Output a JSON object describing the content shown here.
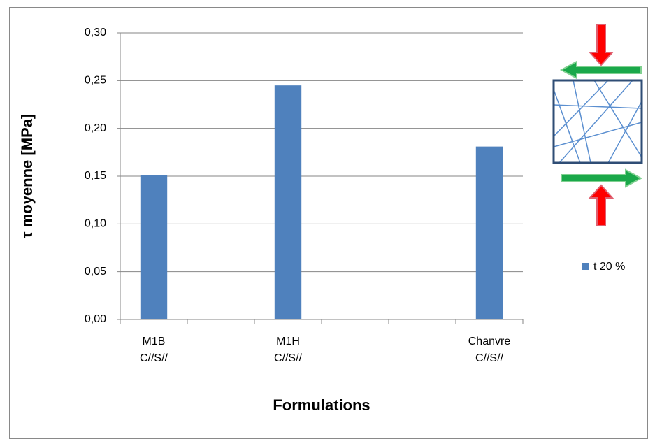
{
  "chart_data": {
    "type": "bar",
    "x_label": "Formulations",
    "y_label": "τ moyenne [MPa]",
    "categories": [
      "M1B\nC//S//",
      null,
      "M1H\nC//S//",
      null,
      null,
      "Chanvre\nC//S//"
    ],
    "series": [
      {
        "name": "t 20 %",
        "color": "#4f81bd",
        "values": [
          0.151,
          null,
          0.245,
          null,
          null,
          0.181
        ]
      }
    ],
    "ylim": [
      0,
      0.3
    ],
    "yticks": [
      {
        "value": 0,
        "label": "0,00"
      },
      {
        "value": 0.05,
        "label": "0,05"
      },
      {
        "value": 0.1,
        "label": "0,10"
      },
      {
        "value": 0.15,
        "label": "0,15"
      },
      {
        "value": 0.2,
        "label": "0,20"
      },
      {
        "value": 0.25,
        "label": "0,25"
      },
      {
        "value": 0.3,
        "label": "0,30"
      }
    ],
    "grid": true,
    "legend": "right"
  }
}
